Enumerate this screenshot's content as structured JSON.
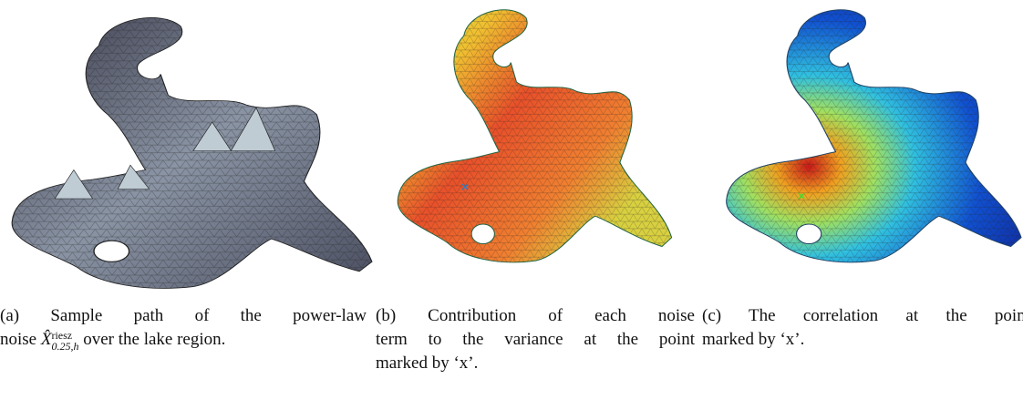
{
  "panels": [
    {
      "caption": {
        "line1": "(a) Sample path of the power-law",
        "line2_before": "noise",
        "symbol": "X̂",
        "sup": "riesz",
        "sub": "0.25,h",
        "line2_after": "over the lake region."
      }
    },
    {
      "caption": {
        "lines": [
          "(b) Contribution of each noise",
          "term to the variance at the point",
          "marked by ‘x’."
        ]
      }
    },
    {
      "caption": {
        "lines": [
          "(c) The correlation at the point",
          "marked by ‘x’."
        ]
      }
    }
  ]
}
